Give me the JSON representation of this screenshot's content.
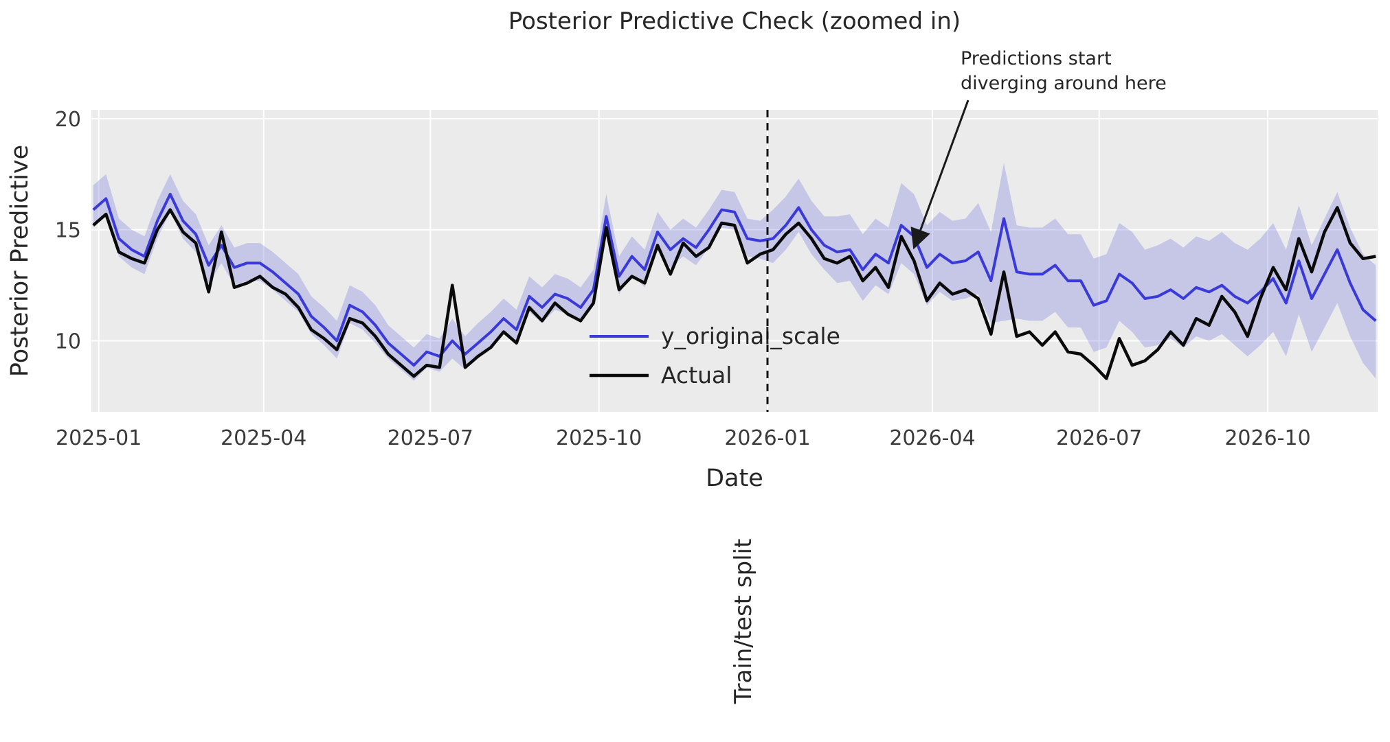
{
  "title": "Posterior Predictive Check (zoomed in)",
  "axes": {
    "x_label": "Date",
    "y_label": "Posterior Predictive",
    "y_ticks": [
      10,
      15,
      20
    ],
    "x_ticks": [
      {
        "label": "2025-01",
        "date": "2025-01-01"
      },
      {
        "label": "2025-04",
        "date": "2025-04-01"
      },
      {
        "label": "2025-07",
        "date": "2025-07-01"
      },
      {
        "label": "2025-10",
        "date": "2025-10-01"
      },
      {
        "label": "2026-01",
        "date": "2026-01-01"
      },
      {
        "label": "2026-04",
        "date": "2026-04-01"
      },
      {
        "label": "2026-07",
        "date": "2026-07-01"
      },
      {
        "label": "2026-10",
        "date": "2026-10-01"
      }
    ]
  },
  "legend": [
    {
      "label": "y_original_scale",
      "color": "#3a3ad9"
    },
    {
      "label": "Actual",
      "color": "#0a0a0a"
    }
  ],
  "split_line": {
    "date": "2026-01-01",
    "label": "Train/test split"
  },
  "annotation": {
    "line1": "Predictions start",
    "line2": "diverging around here",
    "tip_date": "2026-03-22",
    "tip_value": 14.2
  },
  "colors": {
    "plot_background": "#ebebeb",
    "grid": "#ffffff",
    "band_fill": "#7878dc",
    "band_opacity": 0.32,
    "predicted_line": "#3a3ad9",
    "actual_line": "#0a0a0a",
    "split_dash": "#111111",
    "text": "#262626"
  },
  "chart_data": {
    "type": "line",
    "title": "Posterior Predictive Check (zoomed in)",
    "xlabel": "Date",
    "ylabel": "Posterior Predictive",
    "xlim": [
      "2024-12-28",
      "2026-11-30"
    ],
    "ylim": [
      6.8,
      20.4
    ],
    "grid": true,
    "legend_position": "center",
    "x": [
      "2024-12-29",
      "2025-01-05",
      "2025-01-12",
      "2025-01-19",
      "2025-01-26",
      "2025-02-02",
      "2025-02-09",
      "2025-02-16",
      "2025-02-23",
      "2025-03-02",
      "2025-03-09",
      "2025-03-16",
      "2025-03-23",
      "2025-03-30",
      "2025-04-06",
      "2025-04-13",
      "2025-04-20",
      "2025-04-27",
      "2025-05-04",
      "2025-05-11",
      "2025-05-18",
      "2025-05-25",
      "2025-06-01",
      "2025-06-08",
      "2025-06-15",
      "2025-06-22",
      "2025-06-29",
      "2025-07-06",
      "2025-07-13",
      "2025-07-20",
      "2025-07-27",
      "2025-08-03",
      "2025-08-10",
      "2025-08-17",
      "2025-08-24",
      "2025-08-31",
      "2025-09-07",
      "2025-09-14",
      "2025-09-21",
      "2025-09-28",
      "2025-10-05",
      "2025-10-12",
      "2025-10-19",
      "2025-10-26",
      "2025-11-02",
      "2025-11-09",
      "2025-11-16",
      "2025-11-23",
      "2025-11-30",
      "2025-12-07",
      "2025-12-14",
      "2025-12-21",
      "2025-12-28",
      "2026-01-04",
      "2026-01-11",
      "2026-01-18",
      "2026-01-25",
      "2026-02-01",
      "2026-02-08",
      "2026-02-15",
      "2026-02-22",
      "2026-03-01",
      "2026-03-08",
      "2026-03-15",
      "2026-03-22",
      "2026-03-29",
      "2026-04-05",
      "2026-04-12",
      "2026-04-19",
      "2026-04-26",
      "2026-05-03",
      "2026-05-10",
      "2026-05-17",
      "2026-05-24",
      "2026-05-31",
      "2026-06-07",
      "2026-06-14",
      "2026-06-21",
      "2026-06-28",
      "2026-07-05",
      "2026-07-12",
      "2026-07-19",
      "2026-07-26",
      "2026-08-02",
      "2026-08-09",
      "2026-08-16",
      "2026-08-23",
      "2026-08-30",
      "2026-09-06",
      "2026-09-13",
      "2026-09-20",
      "2026-09-27",
      "2026-10-04",
      "2026-10-11",
      "2026-10-18",
      "2026-10-25",
      "2026-11-01",
      "2026-11-08",
      "2026-11-15",
      "2026-11-22",
      "2026-11-29"
    ],
    "series": [
      {
        "name": "Actual",
        "values": [
          15.2,
          15.7,
          14.0,
          13.7,
          13.5,
          15.0,
          15.9,
          14.9,
          14.4,
          12.2,
          14.9,
          12.4,
          12.6,
          12.9,
          12.4,
          12.1,
          11.5,
          10.5,
          10.1,
          9.6,
          11.0,
          10.8,
          10.2,
          9.4,
          8.9,
          8.4,
          8.9,
          8.8,
          12.5,
          8.8,
          9.3,
          9.7,
          10.4,
          9.9,
          11.5,
          10.9,
          11.7,
          11.2,
          10.9,
          11.7,
          15.1,
          12.3,
          12.9,
          12.6,
          14.3,
          13.0,
          14.4,
          13.8,
          14.2,
          15.3,
          15.2,
          13.5,
          13.9,
          14.1,
          14.8,
          15.3,
          14.6,
          13.7,
          13.5,
          13.8,
          12.7,
          13.3,
          12.4,
          14.7,
          13.6,
          11.8,
          12.6,
          12.1,
          12.3,
          11.9,
          10.3,
          13.1,
          10.2,
          10.4,
          9.8,
          10.4,
          9.5,
          9.4,
          8.9,
          8.3,
          10.1,
          8.9,
          9.1,
          9.6,
          10.4,
          9.8,
          11.0,
          10.7,
          12.0,
          11.3,
          10.2,
          11.9,
          13.3,
          12.3,
          14.6,
          13.1,
          14.9,
          16.0,
          14.4,
          13.7,
          13.8
        ]
      },
      {
        "name": "y_original_scale",
        "values": [
          15.9,
          16.4,
          14.6,
          14.1,
          13.8,
          15.4,
          16.6,
          15.4,
          14.8,
          13.4,
          14.3,
          13.3,
          13.5,
          13.5,
          13.1,
          12.6,
          12.1,
          11.1,
          10.6,
          10.0,
          11.6,
          11.3,
          10.7,
          9.9,
          9.4,
          8.9,
          9.5,
          9.3,
          10.0,
          9.4,
          9.9,
          10.4,
          11.0,
          10.5,
          12.0,
          11.5,
          12.1,
          11.9,
          11.5,
          12.3,
          15.6,
          12.9,
          13.8,
          13.2,
          14.9,
          14.1,
          14.6,
          14.2,
          15.0,
          15.9,
          15.8,
          14.6,
          14.5,
          14.6,
          15.2,
          16.0,
          15.0,
          14.3,
          14.0,
          14.1,
          13.2,
          13.9,
          13.5,
          15.2,
          14.7,
          13.3,
          13.9,
          13.5,
          13.6,
          14.0,
          12.7,
          15.5,
          13.1,
          13.0,
          13.0,
          13.4,
          12.7,
          12.7,
          11.6,
          11.8,
          13.0,
          12.6,
          11.9,
          12.0,
          12.3,
          11.9,
          12.4,
          12.2,
          12.5,
          12.0,
          11.7,
          12.2,
          12.8,
          11.7,
          13.6,
          11.9,
          13.0,
          14.1,
          12.6,
          11.4,
          10.9
        ]
      },
      {
        "name": "hdi_upper",
        "values": [
          17.0,
          17.5,
          15.5,
          15.0,
          14.7,
          16.3,
          17.5,
          16.3,
          15.7,
          14.3,
          15.2,
          14.2,
          14.4,
          14.4,
          14.0,
          13.5,
          13.0,
          12.0,
          11.5,
          10.9,
          12.5,
          12.2,
          11.6,
          10.7,
          10.2,
          9.7,
          10.3,
          10.1,
          11.0,
          10.2,
          10.8,
          11.3,
          11.9,
          11.4,
          12.9,
          12.4,
          13.0,
          12.8,
          12.4,
          13.2,
          16.6,
          13.8,
          14.7,
          14.1,
          15.8,
          15.0,
          15.5,
          15.1,
          15.9,
          16.8,
          16.7,
          15.5,
          15.4,
          15.9,
          16.5,
          17.3,
          16.3,
          15.6,
          15.6,
          15.7,
          14.8,
          15.5,
          15.1,
          17.1,
          16.6,
          15.2,
          15.8,
          15.4,
          15.5,
          16.2,
          14.9,
          18.0,
          15.2,
          15.1,
          15.1,
          15.5,
          14.8,
          14.8,
          13.7,
          13.9,
          15.3,
          14.9,
          14.1,
          14.3,
          14.6,
          14.2,
          14.7,
          14.5,
          14.9,
          14.4,
          14.1,
          14.6,
          15.3,
          14.1,
          16.1,
          14.3,
          15.5,
          16.7,
          15.1,
          13.9,
          13.4
        ]
      },
      {
        "name": "hdi_lower",
        "values": [
          15.1,
          15.6,
          13.8,
          13.3,
          13.0,
          14.6,
          15.8,
          14.6,
          14.0,
          12.6,
          13.5,
          12.5,
          12.7,
          12.7,
          12.3,
          11.8,
          11.3,
          10.3,
          9.8,
          9.2,
          10.8,
          10.5,
          9.9,
          9.2,
          8.7,
          8.2,
          8.8,
          8.6,
          9.2,
          8.7,
          9.2,
          9.7,
          10.3,
          9.8,
          11.3,
          10.8,
          11.4,
          11.2,
          10.8,
          11.6,
          14.7,
          12.1,
          13.0,
          12.4,
          14.1,
          13.3,
          13.8,
          13.4,
          14.2,
          15.1,
          15.0,
          13.8,
          13.7,
          13.5,
          14.1,
          14.9,
          13.9,
          13.2,
          12.6,
          12.7,
          11.8,
          12.5,
          12.1,
          13.5,
          13.0,
          11.6,
          12.2,
          11.8,
          11.9,
          12.1,
          10.8,
          10.9,
          11.0,
          10.9,
          10.9,
          11.3,
          10.6,
          10.6,
          9.5,
          9.7,
          10.9,
          10.4,
          9.7,
          9.8,
          10.1,
          9.7,
          10.2,
          10.0,
          10.3,
          9.8,
          9.3,
          9.8,
          10.4,
          9.3,
          11.2,
          9.5,
          10.6,
          11.7,
          10.2,
          9.0,
          8.3
        ]
      }
    ]
  }
}
